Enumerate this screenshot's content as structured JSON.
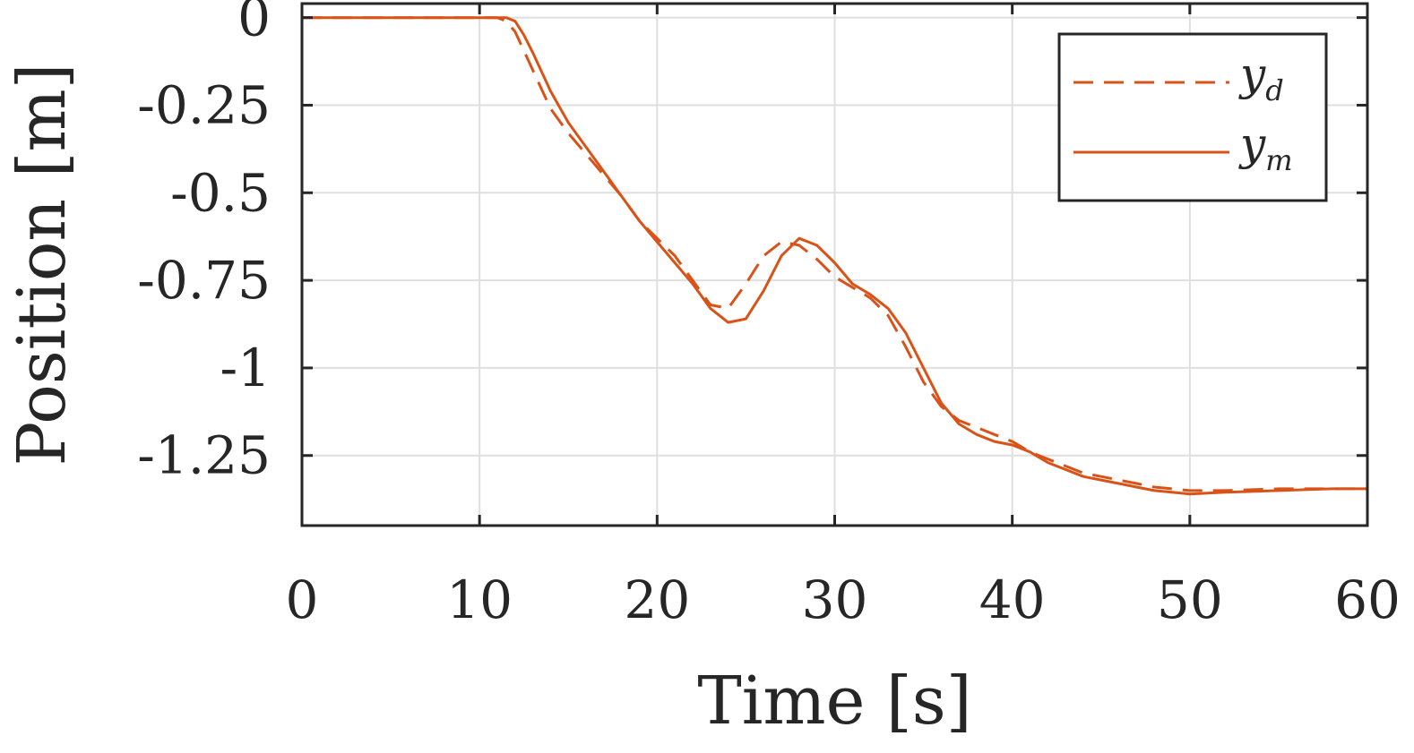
{
  "chart_data": {
    "type": "line",
    "xlabel": "Time [s]",
    "ylabel": "Position [m]",
    "xlim": [
      0,
      60
    ],
    "ylim": [
      -1.45,
      0.04
    ],
    "xticks": [
      0,
      10,
      20,
      30,
      40,
      50,
      60
    ],
    "xtick_labels": [
      "0",
      "10",
      "20",
      "30",
      "40",
      "50",
      "60"
    ],
    "yticks": [
      0,
      -0.25,
      -0.5,
      -0.75,
      -1,
      -1.25
    ],
    "ytick_labels": [
      "0",
      "-0.25",
      "-0.5",
      "-0.75",
      "-1",
      "-1.25"
    ],
    "grid": true,
    "legend_position": "top-right",
    "series": [
      {
        "name": "y_d",
        "legend_base": "y",
        "legend_sub": "d",
        "style": "dashed",
        "color": "#D95319",
        "x": [
          0,
          10,
          11,
          11.5,
          12,
          13,
          14,
          15,
          16,
          17,
          18,
          19,
          20,
          21,
          22,
          23,
          24,
          25,
          26,
          27,
          28,
          29,
          30,
          31,
          32,
          33,
          34,
          35,
          36,
          37,
          38,
          39,
          40,
          41,
          42,
          43,
          44,
          45,
          46,
          47,
          48,
          49,
          50,
          52,
          55,
          58,
          60
        ],
        "y": [
          0,
          0,
          0,
          -0.01,
          -0.04,
          -0.15,
          -0.26,
          -0.33,
          -0.39,
          -0.45,
          -0.51,
          -0.58,
          -0.63,
          -0.68,
          -0.75,
          -0.82,
          -0.83,
          -0.76,
          -0.68,
          -0.64,
          -0.65,
          -0.69,
          -0.74,
          -0.77,
          -0.8,
          -0.85,
          -0.94,
          -1.04,
          -1.11,
          -1.15,
          -1.17,
          -1.19,
          -1.21,
          -1.24,
          -1.26,
          -1.28,
          -1.3,
          -1.31,
          -1.32,
          -1.33,
          -1.34,
          -1.345,
          -1.35,
          -1.35,
          -1.345,
          -1.345,
          -1.345
        ]
      },
      {
        "name": "y_m",
        "legend_base": "y",
        "legend_sub": "m",
        "style": "solid",
        "color": "#D95319",
        "x": [
          0,
          10,
          11,
          11.5,
          12,
          12.5,
          13,
          14,
          15,
          16,
          17,
          18,
          19,
          20,
          21,
          22,
          23,
          24,
          25,
          26,
          27,
          28,
          29,
          30,
          31,
          32,
          33,
          34,
          35,
          36,
          37,
          38,
          39,
          40,
          41,
          42,
          43,
          44,
          45,
          46,
          47,
          48,
          49,
          50,
          52,
          55,
          58,
          60
        ],
        "y": [
          0,
          0,
          0,
          0,
          -0.01,
          -0.05,
          -0.1,
          -0.21,
          -0.3,
          -0.37,
          -0.44,
          -0.51,
          -0.58,
          -0.64,
          -0.7,
          -0.76,
          -0.83,
          -0.87,
          -0.86,
          -0.78,
          -0.68,
          -0.63,
          -0.65,
          -0.7,
          -0.76,
          -0.79,
          -0.83,
          -0.9,
          -1.0,
          -1.1,
          -1.16,
          -1.19,
          -1.21,
          -1.22,
          -1.24,
          -1.27,
          -1.29,
          -1.31,
          -1.32,
          -1.33,
          -1.34,
          -1.35,
          -1.355,
          -1.36,
          -1.355,
          -1.35,
          -1.345,
          -1.345
        ]
      }
    ]
  }
}
